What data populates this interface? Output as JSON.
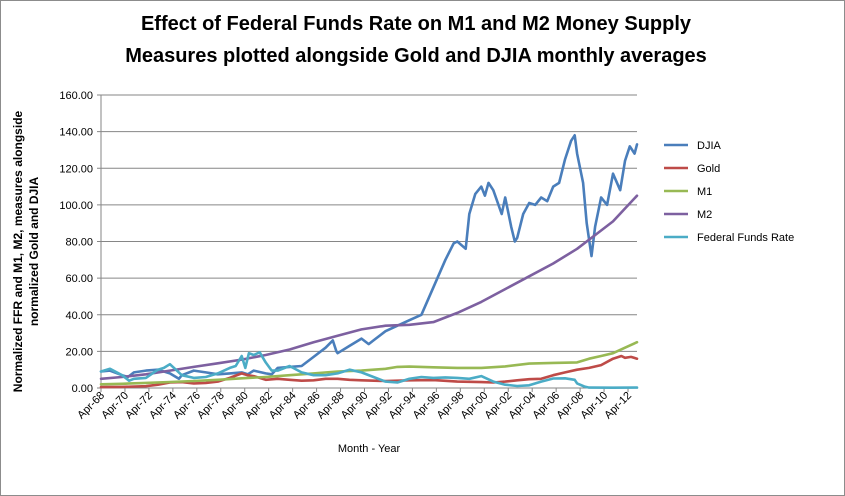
{
  "chart_data": {
    "type": "line",
    "title_line1": "Effect of Federal Funds Rate on M1 and M2 Money Supply",
    "title_line2": "Measures plotted alongside Gold and DJIA monthly averages",
    "xlabel": "Month - Year",
    "ylabel_line1": "Normalized FFR and M1, M2, measures alongside",
    "ylabel_line2": "normalized Gold and DJIA",
    "ylim": [
      0,
      160
    ],
    "yticks": [
      "0.00",
      "20.00",
      "40.00",
      "60.00",
      "80.00",
      "100.00",
      "120.00",
      "140.00",
      "160.00"
    ],
    "xlim": [
      1968.25,
      2013.0
    ],
    "xticks": [
      "Apr-68",
      "Apr-70",
      "Apr-72",
      "Apr-74",
      "Apr-76",
      "Apr-78",
      "Apr-80",
      "Apr-82",
      "Apr-84",
      "Apr-86",
      "Apr-88",
      "Apr-90",
      "Apr-92",
      "Apr-94",
      "Apr-96",
      "Apr-98",
      "Apr-00",
      "Apr-02",
      "Apr-04",
      "Apr-06",
      "Apr-08",
      "Apr-10",
      "Apr-12"
    ],
    "grid": "horizontal",
    "legend_position": "right",
    "series": [
      {
        "name": "DJIA",
        "color": "#4a7ebb",
        "points": [
          [
            1968.25,
            9
          ],
          [
            1969,
            9.5
          ],
          [
            1970,
            7
          ],
          [
            1970.5,
            6
          ],
          [
            1971,
            8.5
          ],
          [
            1972,
            9.5
          ],
          [
            1973,
            10
          ],
          [
            1973.5,
            9
          ],
          [
            1974,
            8
          ],
          [
            1974.75,
            5
          ],
          [
            1975,
            7
          ],
          [
            1976,
            9.5
          ],
          [
            1977,
            8.5
          ],
          [
            1978,
            7.5
          ],
          [
            1979,
            8
          ],
          [
            1980,
            8.5
          ],
          [
            1980.5,
            7.5
          ],
          [
            1981,
            9.5
          ],
          [
            1982,
            8
          ],
          [
            1982.5,
            7.5
          ],
          [
            1983,
            11
          ],
          [
            1984,
            11.5
          ],
          [
            1985,
            12
          ],
          [
            1986,
            17
          ],
          [
            1987,
            22
          ],
          [
            1987.6,
            26
          ],
          [
            1987.9,
            20
          ],
          [
            1988,
            19
          ],
          [
            1989,
            23
          ],
          [
            1990,
            27
          ],
          [
            1990.6,
            24
          ],
          [
            1991,
            26
          ],
          [
            1992,
            31
          ],
          [
            1993,
            34
          ],
          [
            1994,
            37
          ],
          [
            1995,
            40
          ],
          [
            1996,
            55
          ],
          [
            1997,
            70
          ],
          [
            1997.7,
            79
          ],
          [
            1998,
            80
          ],
          [
            1998.7,
            76
          ],
          [
            1999,
            95
          ],
          [
            1999.5,
            106
          ],
          [
            2000,
            110
          ],
          [
            2000.3,
            105
          ],
          [
            2000.6,
            112
          ],
          [
            2001,
            108
          ],
          [
            2001.7,
            95
          ],
          [
            2002,
            104
          ],
          [
            2002.5,
            88
          ],
          [
            2002.8,
            80
          ],
          [
            2003,
            82
          ],
          [
            2003.5,
            95
          ],
          [
            2004,
            101
          ],
          [
            2004.5,
            100
          ],
          [
            2005,
            104
          ],
          [
            2005.5,
            102
          ],
          [
            2006,
            110
          ],
          [
            2006.5,
            112
          ],
          [
            2007,
            125
          ],
          [
            2007.5,
            135
          ],
          [
            2007.8,
            138
          ],
          [
            2008,
            128
          ],
          [
            2008.5,
            112
          ],
          [
            2008.8,
            90
          ],
          [
            2009.2,
            72
          ],
          [
            2009.5,
            88
          ],
          [
            2010,
            104
          ],
          [
            2010.5,
            100
          ],
          [
            2011,
            117
          ],
          [
            2011.6,
            108
          ],
          [
            2012,
            124
          ],
          [
            2012.4,
            132
          ],
          [
            2012.8,
            128
          ],
          [
            2013,
            133
          ]
        ]
      },
      {
        "name": "Gold",
        "color": "#be4b48",
        "points": [
          [
            1968.25,
            0.5
          ],
          [
            1970,
            0.6
          ],
          [
            1972,
            1
          ],
          [
            1973,
            1.8
          ],
          [
            1974,
            3
          ],
          [
            1975,
            3.2
          ],
          [
            1976,
            2.5
          ],
          [
            1977,
            2.8
          ],
          [
            1978,
            3.5
          ],
          [
            1979,
            5.5
          ],
          [
            1980,
            8
          ],
          [
            1980.5,
            7
          ],
          [
            1981,
            6.5
          ],
          [
            1982,
            4.5
          ],
          [
            1983,
            5
          ],
          [
            1984,
            4.5
          ],
          [
            1985,
            4
          ],
          [
            1986,
            4.2
          ],
          [
            1987,
            5
          ],
          [
            1988,
            5
          ],
          [
            1989,
            4.5
          ],
          [
            1990,
            4.2
          ],
          [
            1992,
            3.8
          ],
          [
            1994,
            4.2
          ],
          [
            1996,
            4.3
          ],
          [
            1998,
            3.5
          ],
          [
            2000,
            3.2
          ],
          [
            2001,
            3
          ],
          [
            2002,
            3.5
          ],
          [
            2003,
            4.2
          ],
          [
            2004,
            4.8
          ],
          [
            2005,
            5
          ],
          [
            2006,
            7
          ],
          [
            2007,
            8.5
          ],
          [
            2008,
            10
          ],
          [
            2009,
            11
          ],
          [
            2010,
            12.5
          ],
          [
            2011,
            16
          ],
          [
            2011.7,
            17.5
          ],
          [
            2012,
            16.5
          ],
          [
            2012.5,
            17
          ],
          [
            2013,
            16
          ]
        ]
      },
      {
        "name": "M1",
        "color": "#98b954",
        "points": [
          [
            1968.25,
            2
          ],
          [
            1970,
            2.3
          ],
          [
            1972,
            2.8
          ],
          [
            1974,
            3.3
          ],
          [
            1976,
            3.8
          ],
          [
            1978,
            4.5
          ],
          [
            1980,
            5.3
          ],
          [
            1982,
            6
          ],
          [
            1984,
            7
          ],
          [
            1986,
            8
          ],
          [
            1988,
            9
          ],
          [
            1990,
            9.5
          ],
          [
            1992,
            10.5
          ],
          [
            1993,
            11.5
          ],
          [
            1994,
            11.7
          ],
          [
            1996,
            11.3
          ],
          [
            1998,
            11
          ],
          [
            2000,
            11
          ],
          [
            2002,
            11.8
          ],
          [
            2004,
            13.3
          ],
          [
            2006,
            13.7
          ],
          [
            2008,
            14
          ],
          [
            2009,
            16
          ],
          [
            2010,
            17.5
          ],
          [
            2011,
            19
          ],
          [
            2012,
            22
          ],
          [
            2013,
            25
          ]
        ]
      },
      {
        "name": "M2",
        "color": "#7d60a0",
        "points": [
          [
            1968.25,
            5
          ],
          [
            1970,
            6
          ],
          [
            1972,
            7.5
          ],
          [
            1974,
            9.5
          ],
          [
            1976,
            11.5
          ],
          [
            1978,
            13.5
          ],
          [
            1980,
            15.5
          ],
          [
            1982,
            18
          ],
          [
            1984,
            21
          ],
          [
            1986,
            25
          ],
          [
            1988,
            28.5
          ],
          [
            1990,
            32
          ],
          [
            1992,
            34
          ],
          [
            1994,
            34.5
          ],
          [
            1996,
            36
          ],
          [
            1998,
            41
          ],
          [
            2000,
            47
          ],
          [
            2002,
            54
          ],
          [
            2004,
            61
          ],
          [
            2006,
            68
          ],
          [
            2008,
            76
          ],
          [
            2010,
            86
          ],
          [
            2011,
            91
          ],
          [
            2012,
            98
          ],
          [
            2013,
            105
          ]
        ]
      },
      {
        "name": "Federal Funds Rate",
        "color": "#4bacc6",
        "points": [
          [
            1968.25,
            9
          ],
          [
            1969,
            10.5
          ],
          [
            1970,
            7
          ],
          [
            1970.6,
            4
          ],
          [
            1971,
            5
          ],
          [
            1972,
            5.5
          ],
          [
            1973,
            10
          ],
          [
            1973.5,
            11
          ],
          [
            1974,
            13
          ],
          [
            1974.5,
            10
          ],
          [
            1975,
            7
          ],
          [
            1976,
            5.5
          ],
          [
            1977,
            6
          ],
          [
            1978,
            8
          ],
          [
            1979,
            11
          ],
          [
            1979.5,
            12
          ],
          [
            1980,
            17.5
          ],
          [
            1980.3,
            11
          ],
          [
            1980.6,
            19
          ],
          [
            1981,
            18
          ],
          [
            1981.5,
            19.5
          ],
          [
            1982,
            14
          ],
          [
            1982.5,
            9.5
          ],
          [
            1983,
            9.5
          ],
          [
            1984,
            12
          ],
          [
            1985,
            8.5
          ],
          [
            1986,
            7
          ],
          [
            1987,
            7
          ],
          [
            1988,
            8
          ],
          [
            1989,
            10
          ],
          [
            1990,
            8.5
          ],
          [
            1991,
            6
          ],
          [
            1992,
            3.5
          ],
          [
            1993,
            3
          ],
          [
            1994,
            5
          ],
          [
            1995,
            6
          ],
          [
            1996,
            5.5
          ],
          [
            1997,
            5.8
          ],
          [
            1998,
            5.5
          ],
          [
            1999,
            5
          ],
          [
            2000,
            6.5
          ],
          [
            2001,
            3.5
          ],
          [
            2002,
            1.8
          ],
          [
            2003,
            1.1
          ],
          [
            2004,
            1.5
          ],
          [
            2005,
            3.5
          ],
          [
            2006,
            5.2
          ],
          [
            2007,
            5.3
          ],
          [
            2007.8,
            4.5
          ],
          [
            2008,
            2.5
          ],
          [
            2008.6,
            0.8
          ],
          [
            2009,
            0.2
          ],
          [
            2011,
            0.15
          ],
          [
            2013,
            0.2
          ]
        ]
      }
    ]
  }
}
